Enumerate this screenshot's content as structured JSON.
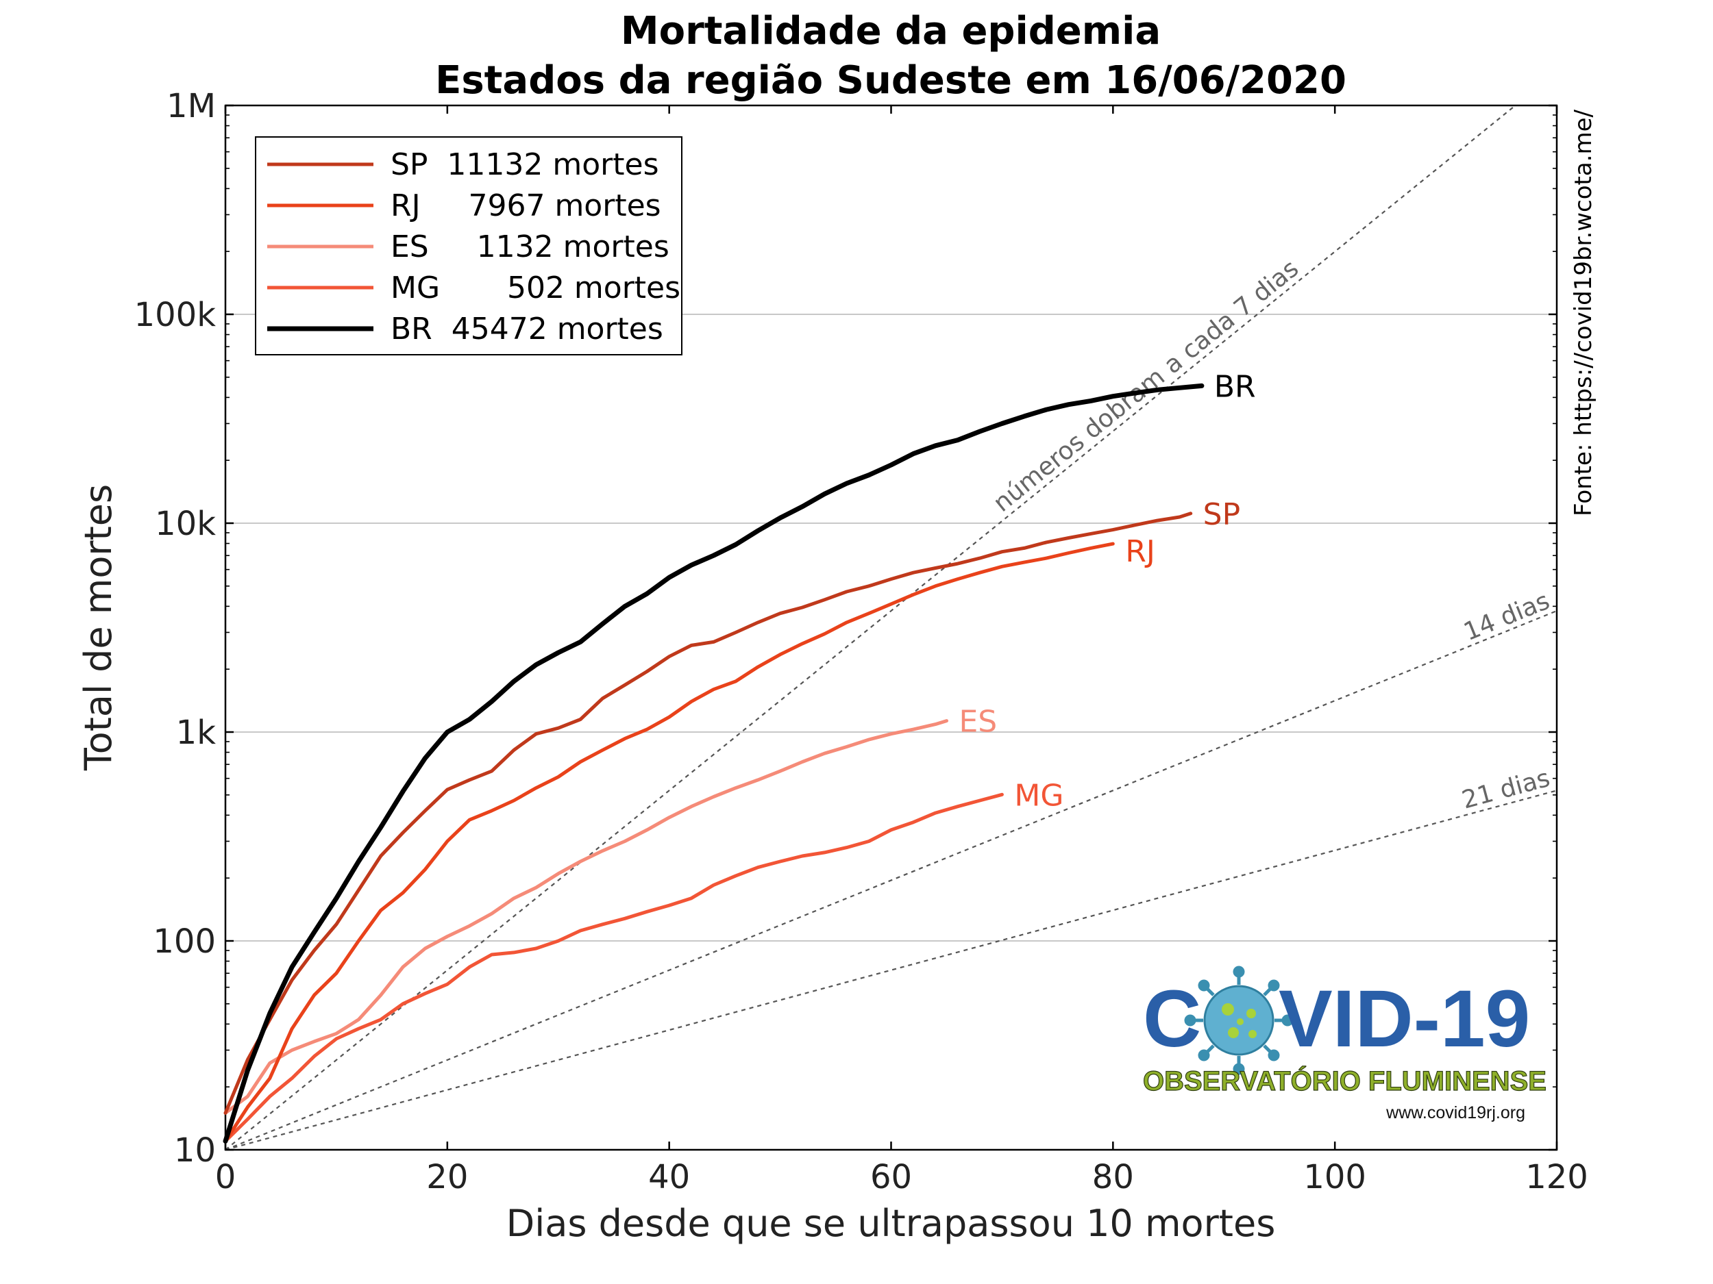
{
  "chart_data": {
    "type": "line",
    "title": "Mortalidade da epidemia",
    "subtitle": "Estados da região Sudeste em 16/06/2020",
    "xlabel": "Dias desde que se ultrapassou 10 mortes",
    "ylabel": "Total de mortes",
    "xlim": [
      0,
      120
    ],
    "ylim": [
      10,
      1000000
    ],
    "yscale": "log",
    "x_ticks": [
      0,
      20,
      40,
      60,
      80,
      100,
      120
    ],
    "x_tick_labels": [
      "0",
      "20",
      "40",
      "60",
      "80",
      "100",
      "120"
    ],
    "y_ticks": [
      10,
      100,
      1000,
      10000,
      100000,
      1000000
    ],
    "y_tick_labels": [
      "10",
      "100",
      "1k",
      "10k",
      "100k",
      "1M"
    ],
    "grid": "horizontal",
    "legend_position": "top-left",
    "series": [
      {
        "name": "SP",
        "legend_label": "SP  11132 mortes",
        "end_label": "SP",
        "color": "#c0391b",
        "x": [
          0,
          2,
          4,
          6,
          8,
          10,
          12,
          14,
          16,
          18,
          20,
          22,
          24,
          26,
          28,
          30,
          32,
          34,
          36,
          38,
          40,
          42,
          44,
          46,
          48,
          50,
          52,
          54,
          56,
          58,
          60,
          62,
          64,
          66,
          68,
          70,
          72,
          74,
          76,
          78,
          80,
          82,
          84,
          86,
          87
        ],
        "values": [
          15,
          27,
          42,
          65,
          90,
          120,
          175,
          255,
          330,
          420,
          530,
          590,
          650,
          820,
          980,
          1045,
          1150,
          1450,
          1680,
          1950,
          2300,
          2600,
          2700,
          3000,
          3350,
          3700,
          3950,
          4300,
          4700,
          5000,
          5400,
          5800,
          6100,
          6400,
          6800,
          7300,
          7600,
          8100,
          8500,
          8900,
          9300,
          9800,
          10300,
          10700,
          11132
        ]
      },
      {
        "name": "RJ",
        "legend_label": "RJ     7967 mortes",
        "end_label": "RJ",
        "color": "#e9421a",
        "x": [
          0,
          2,
          4,
          6,
          8,
          10,
          12,
          14,
          16,
          18,
          20,
          22,
          24,
          26,
          28,
          30,
          32,
          34,
          36,
          38,
          40,
          42,
          44,
          46,
          48,
          50,
          52,
          54,
          56,
          58,
          60,
          62,
          64,
          66,
          68,
          70,
          72,
          74,
          76,
          78,
          80
        ],
        "values": [
          11,
          16,
          22,
          38,
          55,
          70,
          100,
          140,
          170,
          220,
          300,
          380,
          420,
          470,
          540,
          610,
          720,
          820,
          930,
          1030,
          1180,
          1400,
          1600,
          1750,
          2050,
          2350,
          2650,
          2950,
          3350,
          3700,
          4100,
          4550,
          5000,
          5400,
          5800,
          6200,
          6500,
          6800,
          7200,
          7600,
          7967
        ]
      },
      {
        "name": "ES",
        "legend_label": "ES     1132 mortes",
        "end_label": "ES",
        "color": "#f58b78",
        "x": [
          0,
          2,
          4,
          6,
          8,
          10,
          12,
          14,
          16,
          18,
          20,
          22,
          24,
          26,
          28,
          30,
          32,
          34,
          36,
          38,
          40,
          42,
          44,
          46,
          48,
          50,
          52,
          54,
          56,
          58,
          60,
          62,
          64,
          65
        ],
        "values": [
          15,
          18,
          26,
          30,
          33,
          36,
          42,
          55,
          75,
          92,
          105,
          118,
          135,
          160,
          180,
          210,
          240,
          270,
          300,
          340,
          390,
          440,
          490,
          540,
          590,
          650,
          720,
          790,
          850,
          920,
          980,
          1030,
          1090,
          1132
        ]
      },
      {
        "name": "MG",
        "legend_label": "MG       502 mortes",
        "end_label": "MG",
        "color": "#f25536",
        "x": [
          0,
          2,
          4,
          6,
          8,
          10,
          12,
          14,
          16,
          18,
          20,
          22,
          24,
          26,
          28,
          30,
          32,
          34,
          36,
          38,
          40,
          42,
          44,
          46,
          48,
          50,
          52,
          54,
          56,
          58,
          60,
          62,
          64,
          66,
          68,
          70
        ],
        "values": [
          11,
          14,
          18,
          22,
          28,
          34,
          38,
          42,
          50,
          56,
          62,
          75,
          86,
          88,
          92,
          100,
          112,
          120,
          128,
          138,
          148,
          160,
          185,
          205,
          225,
          240,
          255,
          265,
          280,
          300,
          340,
          370,
          410,
          440,
          470,
          502
        ]
      },
      {
        "name": "BR",
        "legend_label": "BR  45472 mortes",
        "end_label": "BR",
        "color": "#000000",
        "x": [
          0,
          2,
          4,
          6,
          8,
          10,
          12,
          14,
          16,
          18,
          20,
          22,
          24,
          26,
          28,
          30,
          32,
          34,
          36,
          38,
          40,
          42,
          44,
          46,
          48,
          50,
          52,
          54,
          56,
          58,
          60,
          62,
          64,
          66,
          68,
          70,
          72,
          74,
          76,
          78,
          80,
          82,
          84,
          86,
          88
        ],
        "values": [
          11,
          24,
          45,
          75,
          110,
          160,
          240,
          350,
          520,
          750,
          1000,
          1150,
          1400,
          1750,
          2100,
          2400,
          2700,
          3300,
          4000,
          4600,
          5500,
          6300,
          7000,
          7900,
          9200,
          10600,
          12000,
          13800,
          15500,
          17000,
          19000,
          21500,
          23500,
          25000,
          27500,
          30000,
          32500,
          35000,
          37000,
          38500,
          40500,
          42000,
          43500,
          44500,
          45472
        ]
      }
    ],
    "reference_lines": [
      {
        "label": "números dobram a cada 7 dias",
        "doubling_days": 7
      },
      {
        "label": "14 dias",
        "doubling_days": 14
      },
      {
        "label": "21 dias",
        "doubling_days": 21
      }
    ],
    "source": "Fonte: https://covid19br.wcota.me/"
  },
  "logo": {
    "title": "COVID-19",
    "subtitle": "OBSERVATÓRIO FLUMINENSE",
    "url": "www.covid19rj.org"
  },
  "colors": {
    "grid": "#c8c8c8",
    "reference_line": "#555555",
    "virus": "#4a9ec0",
    "logo_blue": "#2a5fa8",
    "logo_green": "#8fb02a"
  }
}
